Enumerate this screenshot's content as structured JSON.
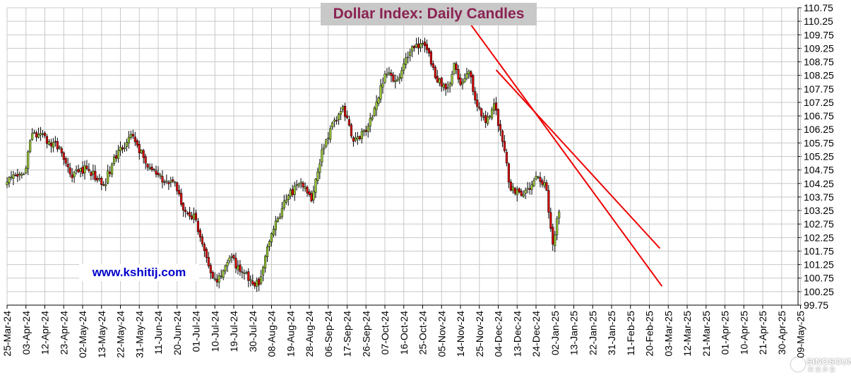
{
  "chart_data": {
    "type": "candlestick",
    "title": "Dollar Index: Daily Candles",
    "website": "www.kshitij.com",
    "watermark": "SINOSOUND",
    "xlabel": "",
    "ylabel": "",
    "ylim": [
      99.75,
      110.75
    ],
    "y_ticks": [
      "110.75",
      "110.25",
      "109.75",
      "109.25",
      "108.75",
      "108.25",
      "107.75",
      "107.25",
      "106.75",
      "106.25",
      "105.75",
      "105.25",
      "104.75",
      "104.25",
      "103.75",
      "103.25",
      "102.75",
      "102.25",
      "101.75",
      "101.25",
      "100.75",
      "100.25",
      "99.75"
    ],
    "x_ticks": [
      "25-Mar-24",
      "03-Apr-24",
      "12-Apr-24",
      "23-Apr-24",
      "02-May-24",
      "13-May-24",
      "22-May-24",
      "31-May-24",
      "11-Jun-24",
      "20-Jun-24",
      "01-Jul-24",
      "10-Jul-24",
      "19-Jul-24",
      "30-Jul-24",
      "08-Aug-24",
      "19-Aug-24",
      "28-Aug-24",
      "06-Sep-24",
      "17-Sep-24",
      "26-Sep-24",
      "07-Oct-24",
      "16-Oct-24",
      "25-Oct-24",
      "05-Nov-24",
      "14-Nov-24",
      "25-Nov-24",
      "04-Dec-24",
      "13-Dec-24",
      "24-Dec-24",
      "02-Jan-25",
      "13-Jan-25",
      "22-Jan-25",
      "31-Jan-25",
      "11-Feb-25",
      "20-Feb-25",
      "03-Mar-25",
      "12-Mar-25",
      "21-Mar-25",
      "01-Apr-25",
      "10-Apr-25",
      "21-Apr-25",
      "30-Apr-25",
      "09-May-25"
    ],
    "colors": {
      "up": "#9acd32",
      "down": "#dd0000",
      "trendline": "#ee0000",
      "grid": "#c8c8c8",
      "title": "#8b2252",
      "website": "#0000cc"
    },
    "grid": true,
    "anchors": [
      {
        "i": 0,
        "c": 104.3
      },
      {
        "i": 8,
        "c": 104.6
      },
      {
        "i": 12,
        "c": 106.1
      },
      {
        "i": 20,
        "c": 105.8
      },
      {
        "i": 25,
        "c": 105.6
      },
      {
        "i": 30,
        "c": 104.6
      },
      {
        "i": 38,
        "c": 104.8
      },
      {
        "i": 46,
        "c": 104.2
      },
      {
        "i": 54,
        "c": 105.6
      },
      {
        "i": 60,
        "c": 106.0
      },
      {
        "i": 66,
        "c": 105.0
      },
      {
        "i": 74,
        "c": 104.3
      },
      {
        "i": 80,
        "c": 104.3
      },
      {
        "i": 85,
        "c": 103.2
      },
      {
        "i": 90,
        "c": 102.9
      },
      {
        "i": 96,
        "c": 101.2
      },
      {
        "i": 100,
        "c": 100.6
      },
      {
        "i": 106,
        "c": 101.5
      },
      {
        "i": 110,
        "c": 101.2
      },
      {
        "i": 116,
        "c": 100.7
      },
      {
        "i": 120,
        "c": 100.5
      },
      {
        "i": 126,
        "c": 102.4
      },
      {
        "i": 134,
        "c": 103.8
      },
      {
        "i": 140,
        "c": 104.3
      },
      {
        "i": 145,
        "c": 103.6
      },
      {
        "i": 150,
        "c": 105.5
      },
      {
        "i": 156,
        "c": 106.6
      },
      {
        "i": 160,
        "c": 107.1
      },
      {
        "i": 164,
        "c": 106.0
      },
      {
        "i": 168,
        "c": 105.9
      },
      {
        "i": 174,
        "c": 106.7
      },
      {
        "i": 180,
        "c": 108.3
      },
      {
        "i": 186,
        "c": 108.1
      },
      {
        "i": 190,
        "c": 108.9
      },
      {
        "i": 195,
        "c": 109.4
      },
      {
        "i": 200,
        "c": 109.2
      },
      {
        "i": 205,
        "c": 108.0
      },
      {
        "i": 210,
        "c": 107.8
      },
      {
        "i": 213,
        "c": 108.7
      },
      {
        "i": 216,
        "c": 107.9
      },
      {
        "i": 220,
        "c": 108.4
      },
      {
        "i": 224,
        "c": 107.1
      },
      {
        "i": 228,
        "c": 106.5
      },
      {
        "i": 232,
        "c": 107.2
      },
      {
        "i": 236,
        "c": 105.8
      },
      {
        "i": 240,
        "c": 104.0
      },
      {
        "i": 245,
        "c": 103.8
      },
      {
        "i": 250,
        "c": 104.2
      },
      {
        "i": 253,
        "c": 104.5
      },
      {
        "i": 257,
        "c": 104.0
      },
      {
        "i": 260,
        "c": 102.0
      },
      {
        "i": 263,
        "c": 103.2
      }
    ],
    "trendlines": [
      {
        "from": {
          "i": 216,
          "y": 110.65
        },
        "to": {
          "i": 312,
          "y": 100.45
        }
      },
      {
        "from": {
          "i": 233,
          "y": 108.45
        },
        "to": {
          "i": 311,
          "y": 101.85
        }
      }
    ]
  }
}
